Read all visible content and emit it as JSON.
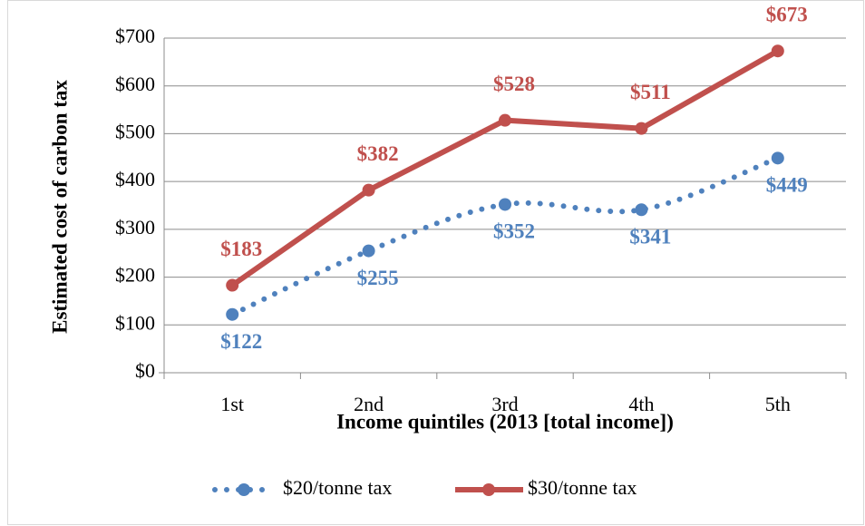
{
  "chart_data": {
    "type": "line",
    "xlabel": "Income quintiles (2013 [total income])",
    "ylabel": "Estimated cost of carbon tax",
    "categories": [
      "1st",
      "2nd",
      "3rd",
      "4th",
      "5th"
    ],
    "series": [
      {
        "name": "$20/tonne tax",
        "color": "#4f81bd",
        "style": "dotted",
        "values": [
          122,
          255,
          352,
          341,
          449
        ],
        "value_labels": [
          "$122",
          "$255",
          "$352",
          "$341",
          "$449"
        ]
      },
      {
        "name": "$30/tonne tax",
        "color": "#c0504d",
        "style": "solid",
        "values": [
          183,
          382,
          528,
          511,
          673
        ],
        "value_labels": [
          "$183",
          "$382",
          "$528",
          "$511",
          "$673"
        ]
      }
    ],
    "ylim": [
      0,
      700
    ],
    "yticks": [
      {
        "value": 0,
        "label": "$0"
      },
      {
        "value": 100,
        "label": "$100"
      },
      {
        "value": 200,
        "label": "$200"
      },
      {
        "value": 300,
        "label": "$300"
      },
      {
        "value": 400,
        "label": "$400"
      },
      {
        "value": 500,
        "label": "$500"
      },
      {
        "value": 600,
        "label": "$600"
      },
      {
        "value": 700,
        "label": "$700"
      }
    ],
    "grid": true,
    "legend": "bottom"
  }
}
